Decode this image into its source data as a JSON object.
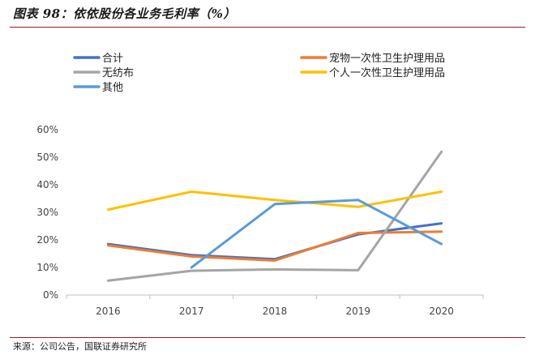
{
  "header": {
    "title": "图表 98：依依股份各业务毛利率（%）"
  },
  "footer": {
    "source": "来源：公司公告，国联证券研究所"
  },
  "chart_data": {
    "type": "line",
    "title": "图表 98：依依股份各业务毛利率（%）",
    "xlabel": "",
    "ylabel": "",
    "categories": [
      "2016",
      "2017",
      "2018",
      "2019",
      "2020"
    ],
    "ylim": [
      0,
      60
    ],
    "yticks": [
      0,
      10,
      20,
      30,
      40,
      50,
      60
    ],
    "ytick_labels": [
      "0%",
      "10%",
      "20%",
      "30%",
      "40%",
      "50%",
      "60%"
    ],
    "grid": false,
    "legend_position": "top",
    "series": [
      {
        "name": "合计",
        "color": "#4472C4",
        "values": [
          18.5,
          14.5,
          13.0,
          22.0,
          26.0
        ]
      },
      {
        "name": "宠物一次性卫生护理用品",
        "color": "#ED7D31",
        "values": [
          18.0,
          14.0,
          12.5,
          22.5,
          23.0
        ]
      },
      {
        "name": "无纺布",
        "color": "#A5A5A5",
        "values": [
          5.2,
          8.8,
          9.3,
          9.0,
          52.0
        ]
      },
      {
        "name": "个人一次性卫生护理用品",
        "color": "#FFC000",
        "values": [
          31.0,
          37.5,
          34.5,
          32.0,
          37.5
        ]
      },
      {
        "name": "其他",
        "color": "#5B9BD5",
        "values": [
          null,
          10.0,
          33.0,
          34.5,
          18.5
        ]
      }
    ]
  }
}
